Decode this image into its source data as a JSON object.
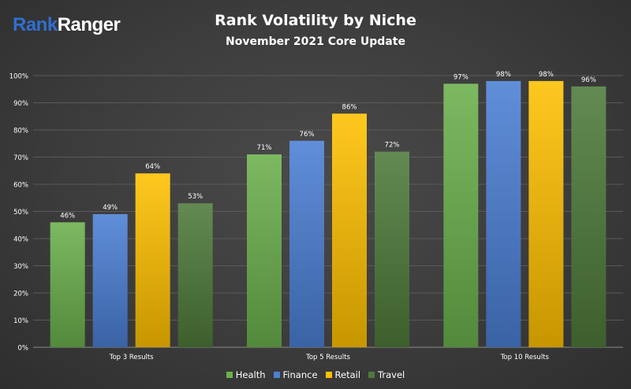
{
  "brand": {
    "part1": "Rank",
    "part2": "Ranger"
  },
  "chart_data": {
    "type": "bar",
    "title": "Rank Volatility by Niche",
    "subtitle": "November 2021 Core Update",
    "categories": [
      "Top 3 Results",
      "Top 5 Results",
      "Top 10 Results"
    ],
    "series": [
      {
        "name": "Health",
        "values": [
          46,
          71,
          97
        ],
        "color": "#6ab04c"
      },
      {
        "name": "Finance",
        "values": [
          49,
          76,
          98
        ],
        "color": "#4a7fd4"
      },
      {
        "name": "Retail",
        "values": [
          64,
          86,
          98
        ],
        "color": "#ffc000"
      },
      {
        "name": "Travel",
        "values": [
          53,
          72,
          96
        ],
        "color": "#4e7a3a"
      }
    ],
    "value_suffix": "%",
    "ylim": [
      0,
      100
    ],
    "yticks": [
      "0%",
      "10%",
      "20%",
      "30%",
      "40%",
      "50%",
      "60%",
      "70%",
      "80%",
      "90%",
      "100%"
    ],
    "grid": true,
    "legend_position": "bottom"
  }
}
